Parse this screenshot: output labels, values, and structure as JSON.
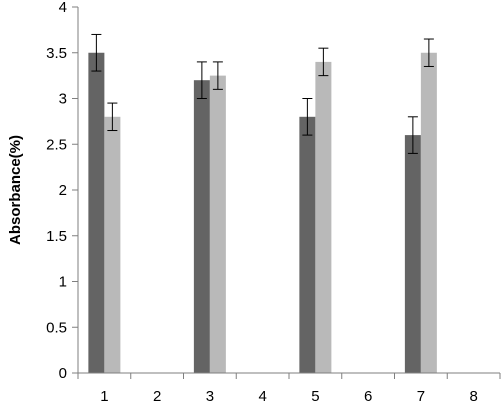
{
  "chart_data": {
    "type": "bar",
    "title": "",
    "xlabel": "",
    "ylabel": "Absorbance(%)",
    "categories": [
      "1",
      "2",
      "3",
      "4",
      "5",
      "6",
      "7",
      "8"
    ],
    "ylim": [
      0,
      4
    ],
    "yticks": [
      "0",
      "0.5",
      "1",
      "1.5",
      "2",
      "2.5",
      "3",
      "3.5",
      "4"
    ],
    "grid": false,
    "legend": "none",
    "series": [
      {
        "color": "#646464",
        "values": [
          3.5,
          null,
          3.2,
          null,
          2.8,
          null,
          2.6,
          null
        ],
        "errors": [
          0.2,
          null,
          0.2,
          null,
          0.2,
          null,
          0.2,
          null
        ]
      },
      {
        "color": "#b9b9b9",
        "values": [
          2.8,
          null,
          3.25,
          null,
          3.4,
          null,
          3.5,
          null
        ],
        "errors": [
          0.15,
          null,
          0.15,
          null,
          0.15,
          null,
          0.15,
          null
        ]
      }
    ]
  }
}
